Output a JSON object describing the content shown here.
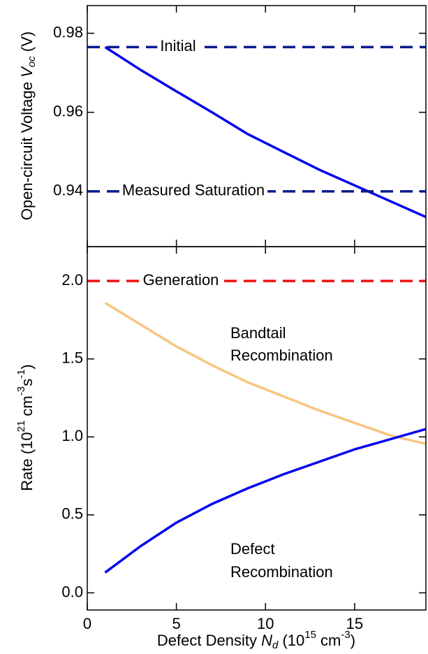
{
  "chart_data": [
    {
      "type": "line",
      "y_label": [
        "Open-circuit Voltage ",
        "V",
        "oc",
        " (V)"
      ],
      "x": [
        1,
        3,
        5,
        7,
        9,
        11,
        13,
        15,
        17,
        19
      ],
      "xlim": [
        0,
        19
      ],
      "xticks": [
        0,
        5,
        10,
        15
      ],
      "ylim": [
        0.926,
        0.987
      ],
      "yticks": [
        0.94,
        0.96,
        0.98
      ],
      "series": [
        {
          "color": "#0000ee",
          "dash": false,
          "values": [
            0.9765,
            0.9707,
            0.9653,
            0.96,
            0.9545,
            0.95,
            0.9455,
            0.9415,
            0.9375,
            0.9335
          ]
        },
        {
          "name": "Initial",
          "color": "#0a1a8c",
          "dash": true,
          "values": [
            0.9765,
            0.9765,
            0.9765,
            0.9765,
            0.9765,
            0.9765,
            0.9765,
            0.9765,
            0.9765,
            0.9765
          ]
        },
        {
          "name": "Measured Saturation",
          "color": "#0a1a8c",
          "dash": true,
          "values": [
            0.94,
            0.94,
            0.94,
            0.94,
            0.94,
            0.94,
            0.94,
            0.94,
            0.94,
            0.94
          ]
        }
      ]
    },
    {
      "type": "line",
      "y_label": [
        "Rate (10",
        "21",
        " cm",
        "-3",
        "s",
        "-1",
        ")"
      ],
      "x_label": [
        "Defect Density ",
        "N",
        "d",
        " (10",
        "15",
        " cm",
        "-3",
        ")"
      ],
      "x": [
        1,
        3,
        5,
        7,
        9,
        11,
        13,
        15,
        17,
        19
      ],
      "xlim": [
        0,
        19
      ],
      "xticks": [
        0,
        5,
        10,
        15
      ],
      "ylim": [
        -0.11,
        2.22
      ],
      "yticks": [
        {
          "value": 0,
          "label": "0.0"
        },
        0.5,
        {
          "value": 1,
          "label": "1.0"
        },
        1.5,
        {
          "value": 2,
          "label": "2.0"
        }
      ],
      "series": [
        {
          "name": "Generation",
          "color": "#ee1111",
          "dash": true,
          "values": [
            2,
            2,
            2,
            2,
            2,
            2,
            2,
            2,
            2,
            2
          ]
        },
        {
          "color": "#f8c580",
          "dash": false,
          "values": [
            1.86,
            1.72,
            1.58,
            1.46,
            1.35,
            1.26,
            1.17,
            1.09,
            1.01,
            0.955
          ]
        },
        {
          "color": "#0000ee",
          "dash": false,
          "values": [
            0.13,
            0.3,
            0.45,
            0.57,
            0.67,
            0.76,
            0.84,
            0.92,
            0.985,
            1.05
          ]
        }
      ],
      "annotations": [
        "Bandtail",
        "Recombination",
        "Defect",
        "Recombination"
      ]
    }
  ]
}
